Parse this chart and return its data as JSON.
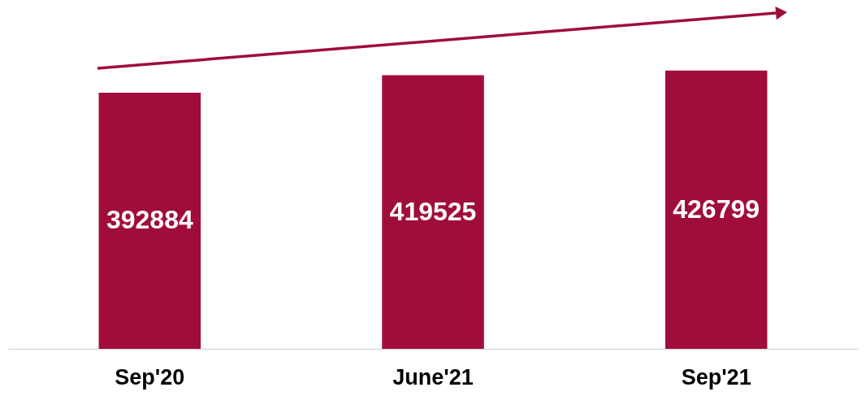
{
  "chart_data": {
    "type": "bar",
    "categories": [
      "Sep'20",
      "June'21",
      "Sep'21"
    ],
    "series": [
      {
        "color": "#a00d3a",
        "values": [
          392884,
          419525,
          426799
        ]
      }
    ],
    "data_labels": true,
    "tick_labels": "x",
    "grid": false
  }
}
